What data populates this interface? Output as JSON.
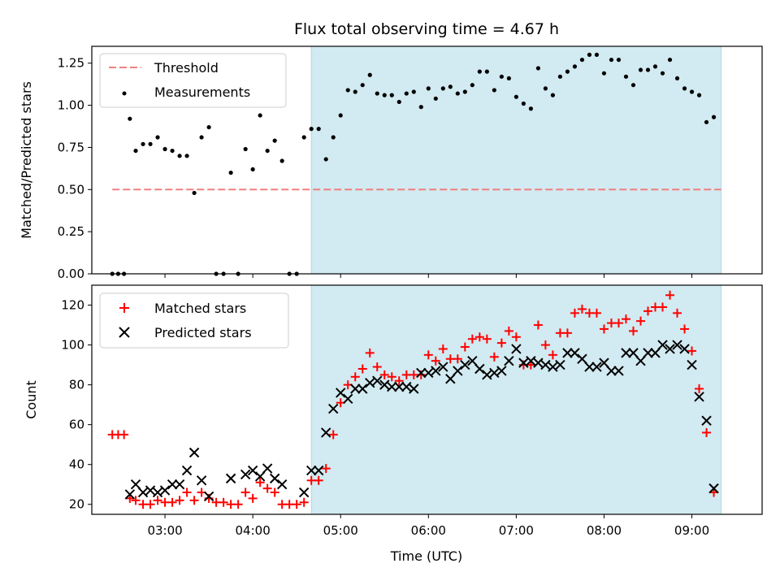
{
  "title": "Flux total observing time = 4.67 h",
  "colors": {
    "threshold": "#f08080",
    "measurement": "#000000",
    "matched": "#ff0000",
    "predicted": "#000000",
    "span": "#add8e6"
  },
  "chart_data": [
    {
      "id": "top",
      "type": "scatter",
      "ylabel": "Matched/Predicted stars",
      "xlabel": "",
      "xlim": [
        "02:10",
        "09:48"
      ],
      "ylim": [
        0.0,
        1.35
      ],
      "yticks": [
        0.0,
        0.25,
        0.5,
        0.75,
        1.0,
        1.25
      ],
      "ytick_labels": [
        "0.00",
        "0.25",
        "0.50",
        "0.75",
        "1.00",
        "1.25"
      ],
      "shaded_span": [
        "04:40",
        "09:20"
      ],
      "legend": {
        "placement": "upper-left",
        "threshold_label": "Threshold",
        "measurements_label": "Measurements"
      },
      "threshold": {
        "y": 0.5,
        "x": [
          "02:24",
          "09:20"
        ]
      },
      "measurements": [
        [
          "02:24",
          0.0
        ],
        [
          "02:28",
          0.0
        ],
        [
          "02:32",
          0.0
        ],
        [
          "02:36",
          0.92
        ],
        [
          "02:40",
          0.73
        ],
        [
          "02:45",
          0.77
        ],
        [
          "02:50",
          0.77
        ],
        [
          "02:55",
          0.81
        ],
        [
          "03:00",
          0.74
        ],
        [
          "03:05",
          0.73
        ],
        [
          "03:10",
          0.7
        ],
        [
          "03:15",
          0.7
        ],
        [
          "03:20",
          0.48
        ],
        [
          "03:25",
          0.81
        ],
        [
          "03:30",
          0.87
        ],
        [
          "03:35",
          0.0
        ],
        [
          "03:40",
          0.0
        ],
        [
          "03:45",
          0.6
        ],
        [
          "03:50",
          0.0
        ],
        [
          "03:55",
          0.74
        ],
        [
          "04:00",
          0.62
        ],
        [
          "04:05",
          0.94
        ],
        [
          "04:10",
          0.73
        ],
        [
          "04:15",
          0.79
        ],
        [
          "04:20",
          0.67
        ],
        [
          "04:25",
          0.0
        ],
        [
          "04:30",
          0.0
        ],
        [
          "04:35",
          0.81
        ],
        [
          "04:40",
          0.86
        ],
        [
          "04:45",
          0.86
        ],
        [
          "04:50",
          0.68
        ],
        [
          "04:55",
          0.81
        ],
        [
          "05:00",
          0.94
        ],
        [
          "05:05",
          1.09
        ],
        [
          "05:10",
          1.08
        ],
        [
          "05:15",
          1.12
        ],
        [
          "05:20",
          1.18
        ],
        [
          "05:25",
          1.07
        ],
        [
          "05:30",
          1.06
        ],
        [
          "05:35",
          1.06
        ],
        [
          "05:40",
          1.02
        ],
        [
          "05:45",
          1.07
        ],
        [
          "05:50",
          1.08
        ],
        [
          "05:55",
          0.99
        ],
        [
          "06:00",
          1.1
        ],
        [
          "06:05",
          1.04
        ],
        [
          "06:10",
          1.1
        ],
        [
          "06:15",
          1.11
        ],
        [
          "06:20",
          1.07
        ],
        [
          "06:25",
          1.08
        ],
        [
          "06:30",
          1.12
        ],
        [
          "06:35",
          1.2
        ],
        [
          "06:40",
          1.2
        ],
        [
          "06:45",
          1.09
        ],
        [
          "06:50",
          1.17
        ],
        [
          "06:55",
          1.16
        ],
        [
          "07:00",
          1.05
        ],
        [
          "07:05",
          1.01
        ],
        [
          "07:10",
          0.98
        ],
        [
          "07:15",
          1.22
        ],
        [
          "07:20",
          1.1
        ],
        [
          "07:25",
          1.06
        ],
        [
          "07:30",
          1.17
        ],
        [
          "07:35",
          1.2
        ],
        [
          "07:40",
          1.23
        ],
        [
          "07:45",
          1.27
        ],
        [
          "07:50",
          1.3
        ],
        [
          "07:55",
          1.3
        ],
        [
          "08:00",
          1.19
        ],
        [
          "08:05",
          1.27
        ],
        [
          "08:10",
          1.27
        ],
        [
          "08:15",
          1.17
        ],
        [
          "08:20",
          1.12
        ],
        [
          "08:25",
          1.21
        ],
        [
          "08:30",
          1.21
        ],
        [
          "08:35",
          1.23
        ],
        [
          "08:40",
          1.19
        ],
        [
          "08:45",
          1.27
        ],
        [
          "08:50",
          1.16
        ],
        [
          "08:55",
          1.1
        ],
        [
          "09:00",
          1.08
        ],
        [
          "09:05",
          1.06
        ],
        [
          "09:10",
          0.9
        ],
        [
          "09:15",
          0.93
        ]
      ]
    },
    {
      "id": "bottom",
      "type": "scatter",
      "ylabel": "Count",
      "xlabel": "Time (UTC)",
      "xlim": [
        "02:10",
        "09:48"
      ],
      "ylim": [
        15,
        130
      ],
      "yticks": [
        20,
        40,
        60,
        80,
        100,
        120
      ],
      "ytick_labels": [
        "20",
        "40",
        "60",
        "80",
        "100",
        "120"
      ],
      "xticks": [
        "03:00",
        "04:00",
        "05:00",
        "06:00",
        "07:00",
        "08:00",
        "09:00"
      ],
      "xtick_labels": [
        "03:00",
        "04:00",
        "05:00",
        "06:00",
        "07:00",
        "08:00",
        "09:00"
      ],
      "shaded_span": [
        "04:40",
        "09:20"
      ],
      "legend": {
        "placement": "upper-left",
        "matched_label": "Matched stars",
        "predicted_label": "Predicted stars"
      },
      "series": [
        {
          "name": "Matched stars",
          "marker": "plus",
          "points": [
            [
              "02:24",
              55
            ],
            [
              "02:28",
              55
            ],
            [
              "02:32",
              55
            ],
            [
              "02:36",
              23
            ],
            [
              "02:40",
              22
            ],
            [
              "02:45",
              20
            ],
            [
              "02:50",
              20
            ],
            [
              "02:55",
              22
            ],
            [
              "03:00",
              21
            ],
            [
              "03:05",
              21
            ],
            [
              "03:10",
              22
            ],
            [
              "03:15",
              26
            ],
            [
              "03:20",
              22
            ],
            [
              "03:25",
              26
            ],
            [
              "03:30",
              23
            ],
            [
              "03:35",
              21
            ],
            [
              "03:40",
              21
            ],
            [
              "03:45",
              20
            ],
            [
              "03:50",
              20
            ],
            [
              "03:55",
              26
            ],
            [
              "04:00",
              23
            ],
            [
              "04:05",
              31
            ],
            [
              "04:10",
              28
            ],
            [
              "04:15",
              26
            ],
            [
              "04:20",
              20
            ],
            [
              "04:25",
              20
            ],
            [
              "04:30",
              20
            ],
            [
              "04:35",
              21
            ],
            [
              "04:40",
              32
            ],
            [
              "04:45",
              32
            ],
            [
              "04:50",
              38
            ],
            [
              "04:55",
              55
            ],
            [
              "05:00",
              71
            ],
            [
              "05:05",
              80
            ],
            [
              "05:10",
              84
            ],
            [
              "05:15",
              88
            ],
            [
              "05:20",
              96
            ],
            [
              "05:25",
              89
            ],
            [
              "05:30",
              85
            ],
            [
              "05:35",
              84
            ],
            [
              "05:40",
              82
            ],
            [
              "05:45",
              85
            ],
            [
              "05:50",
              85
            ],
            [
              "05:55",
              85
            ],
            [
              "06:00",
              95
            ],
            [
              "06:05",
              92
            ],
            [
              "06:10",
              98
            ],
            [
              "06:15",
              93
            ],
            [
              "06:20",
              93
            ],
            [
              "06:25",
              99
            ],
            [
              "06:30",
              103
            ],
            [
              "06:35",
              104
            ],
            [
              "06:40",
              103
            ],
            [
              "06:45",
              94
            ],
            [
              "06:50",
              101
            ],
            [
              "06:55",
              107
            ],
            [
              "07:00",
              104
            ],
            [
              "07:05",
              90
            ],
            [
              "07:10",
              90
            ],
            [
              "07:15",
              110
            ],
            [
              "07:20",
              100
            ],
            [
              "07:25",
              95
            ],
            [
              "07:30",
              106
            ],
            [
              "07:35",
              106
            ],
            [
              "07:40",
              116
            ],
            [
              "07:45",
              118
            ],
            [
              "07:50",
              116
            ],
            [
              "07:55",
              116
            ],
            [
              "08:00",
              108
            ],
            [
              "08:05",
              111
            ],
            [
              "08:10",
              111
            ],
            [
              "08:15",
              113
            ],
            [
              "08:20",
              107
            ],
            [
              "08:25",
              112
            ],
            [
              "08:30",
              117
            ],
            [
              "08:35",
              119
            ],
            [
              "08:40",
              119
            ],
            [
              "08:45",
              125
            ],
            [
              "08:50",
              116
            ],
            [
              "08:55",
              108
            ],
            [
              "09:00",
              97
            ],
            [
              "09:05",
              78
            ],
            [
              "09:10",
              56
            ],
            [
              "09:15",
              26
            ]
          ]
        },
        {
          "name": "Predicted stars",
          "marker": "x",
          "points": [
            [
              "02:36",
              25
            ],
            [
              "02:40",
              30
            ],
            [
              "02:45",
              26
            ],
            [
              "02:50",
              27
            ],
            [
              "02:55",
              26
            ],
            [
              "03:00",
              27
            ],
            [
              "03:05",
              30
            ],
            [
              "03:10",
              30
            ],
            [
              "03:15",
              37
            ],
            [
              "03:20",
              46
            ],
            [
              "03:25",
              32
            ],
            [
              "03:30",
              24
            ],
            [
              "03:45",
              33
            ],
            [
              "03:55",
              35
            ],
            [
              "04:00",
              37
            ],
            [
              "04:05",
              34
            ],
            [
              "04:10",
              38
            ],
            [
              "04:15",
              33
            ],
            [
              "04:20",
              30
            ],
            [
              "04:35",
              26
            ],
            [
              "04:40",
              37
            ],
            [
              "04:45",
              37
            ],
            [
              "04:50",
              56
            ],
            [
              "04:55",
              68
            ],
            [
              "05:00",
              76
            ],
            [
              "05:05",
              73
            ],
            [
              "05:10",
              78
            ],
            [
              "05:15",
              78
            ],
            [
              "05:20",
              81
            ],
            [
              "05:25",
              82
            ],
            [
              "05:30",
              80
            ],
            [
              "05:35",
              79
            ],
            [
              "05:40",
              79
            ],
            [
              "05:45",
              79
            ],
            [
              "05:50",
              78
            ],
            [
              "05:55",
              86
            ],
            [
              "06:00",
              86
            ],
            [
              "06:05",
              87
            ],
            [
              "06:10",
              89
            ],
            [
              "06:15",
              83
            ],
            [
              "06:20",
              87
            ],
            [
              "06:25",
              90
            ],
            [
              "06:30",
              92
            ],
            [
              "06:35",
              88
            ],
            [
              "06:40",
              85
            ],
            [
              "06:45",
              86
            ],
            [
              "06:50",
              87
            ],
            [
              "06:55",
              92
            ],
            [
              "07:00",
              98
            ],
            [
              "07:05",
              91
            ],
            [
              "07:10",
              92
            ],
            [
              "07:15",
              91
            ],
            [
              "07:20",
              90
            ],
            [
              "07:25",
              89
            ],
            [
              "07:30",
              90
            ],
            [
              "07:35",
              96
            ],
            [
              "07:40",
              96
            ],
            [
              "07:45",
              93
            ],
            [
              "07:50",
              89
            ],
            [
              "07:55",
              89
            ],
            [
              "08:00",
              91
            ],
            [
              "08:05",
              87
            ],
            [
              "08:10",
              87
            ],
            [
              "08:15",
              96
            ],
            [
              "08:20",
              96
            ],
            [
              "08:25",
              92
            ],
            [
              "08:30",
              96
            ],
            [
              "08:35",
              96
            ],
            [
              "08:40",
              100
            ],
            [
              "08:45",
              98
            ],
            [
              "08:50",
              100
            ],
            [
              "08:55",
              98
            ],
            [
              "09:00",
              90
            ],
            [
              "09:05",
              74
            ],
            [
              "09:10",
              62
            ],
            [
              "09:15",
              28
            ]
          ]
        }
      ]
    }
  ]
}
